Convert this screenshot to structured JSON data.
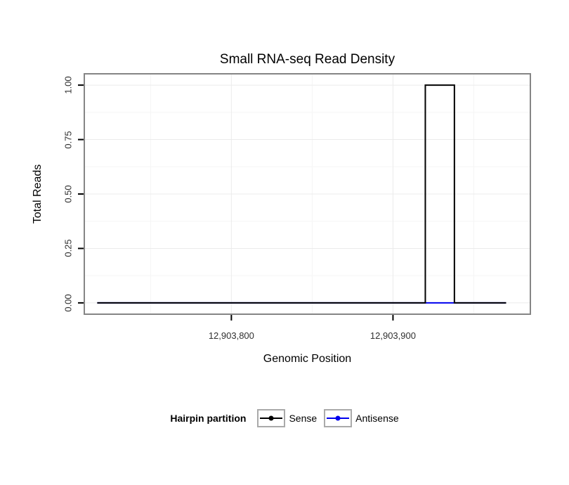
{
  "chart_data": {
    "type": "line",
    "title": "Small RNA-seq Read Density",
    "xlabel": "Genomic Position",
    "ylabel": "Total Reads",
    "xlim": [
      12903709,
      12903985
    ],
    "ylim": [
      -0.052,
      1.052
    ],
    "x_ticks": [
      {
        "value": 12903800,
        "label": "12,903,800"
      },
      {
        "value": 12903900,
        "label": "12,903,900"
      }
    ],
    "x_minor_ticks": [
      12903750,
      12903850,
      12903950
    ],
    "y_ticks": [
      {
        "value": 0.0,
        "label": "0.00"
      },
      {
        "value": 0.25,
        "label": "0.25"
      },
      {
        "value": 0.5,
        "label": "0.50"
      },
      {
        "value": 0.75,
        "label": "0.75"
      },
      {
        "value": 1.0,
        "label": "1.00"
      }
    ],
    "y_minor_ticks": [
      0.125,
      0.375,
      0.625,
      0.875
    ],
    "grid": {
      "visible": true,
      "major_color": "#ebebeb",
      "minor_color": "#f5f5f5"
    },
    "panel": {
      "background": "#ffffff",
      "border_color": "#858585"
    },
    "legend": {
      "title": "Hairpin partition",
      "position": "bottom"
    },
    "series": [
      {
        "name": "Sense",
        "color": "#000000",
        "points": [
          [
            12903717,
            0
          ],
          [
            12903920,
            0
          ],
          [
            12903920,
            1
          ],
          [
            12903938,
            1
          ],
          [
            12903938,
            0
          ],
          [
            12903970,
            0
          ]
        ]
      },
      {
        "name": "Antisense",
        "color": "#0000ee",
        "points": [
          [
            12903717,
            0
          ],
          [
            12903970,
            0
          ]
        ]
      }
    ]
  }
}
